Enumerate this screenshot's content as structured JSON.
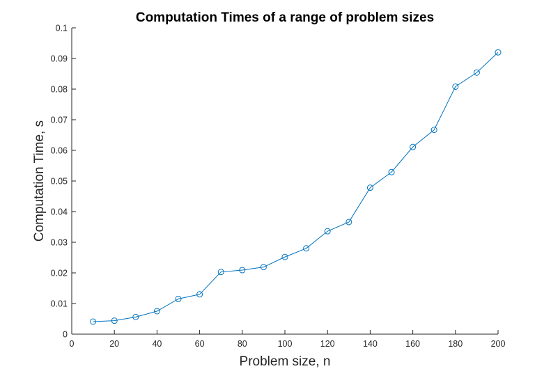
{
  "chart_data": {
    "type": "line",
    "title": "Computation Times of a range of problem sizes",
    "xlabel": "Problem size, n",
    "ylabel": "Computation Time, s",
    "xlim": [
      0,
      200
    ],
    "ylim": [
      0,
      0.1
    ],
    "xticks": [
      "0",
      "20",
      "40",
      "60",
      "80",
      "100",
      "120",
      "140",
      "160",
      "180",
      "200"
    ],
    "yticks": [
      "0",
      "0.01",
      "0.02",
      "0.03",
      "0.04",
      "0.05",
      "0.06",
      "0.07",
      "0.08",
      "0.09",
      "0.1"
    ],
    "grid": false,
    "marker": "circle",
    "color": "#0072BD",
    "series": [
      {
        "x": [
          10,
          20,
          30,
          40,
          50,
          60,
          70,
          80,
          90,
          100,
          110,
          120,
          130,
          140,
          150,
          160,
          170,
          180,
          190,
          200
        ],
        "values": [
          0.0041,
          0.0044,
          0.0056,
          0.0075,
          0.0115,
          0.013,
          0.0203,
          0.0209,
          0.0219,
          0.0252,
          0.028,
          0.0336,
          0.0366,
          0.0478,
          0.0529,
          0.0611,
          0.0667,
          0.0808,
          0.0854,
          0.092
        ]
      }
    ]
  }
}
